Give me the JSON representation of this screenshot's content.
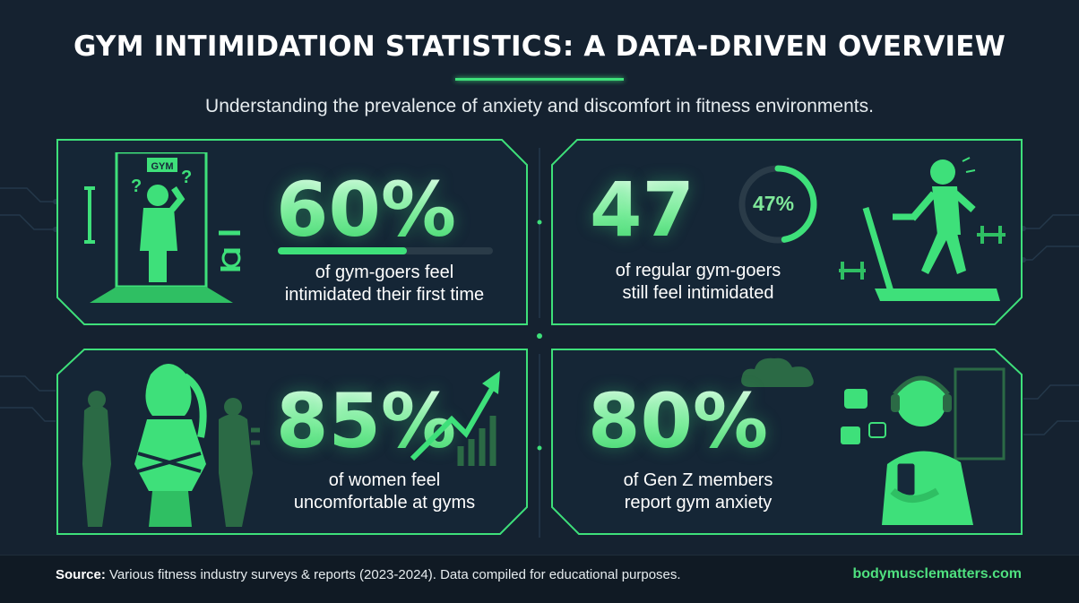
{
  "header": {
    "title": "GYM INTIMIDATION STATISTICS: A DATA-DRIVEN OVERVIEW",
    "subtitle": "Understanding the prevalence of anxiety and discomfort in fitness environments."
  },
  "colors": {
    "background": "#152230",
    "accent": "#3ee07a",
    "text": "#ffffff"
  },
  "stats": [
    {
      "value": "60%",
      "fraction": 0.6,
      "caption_line1": "of gym-goers feel",
      "caption_line2": "intimidated their first time",
      "illustration": "confused-person-at-gym-entrance-icon",
      "sign_text": "GYM"
    },
    {
      "value": "47",
      "ring_label": "47%",
      "fraction": 0.47,
      "caption_line1": "of regular gym-goers",
      "caption_line2": "still feel intimidated",
      "illustration": "person-on-treadmill-icon"
    },
    {
      "value": "85%",
      "fraction": 0.85,
      "caption_line1": "of women feel",
      "caption_line2": "uncomfortable at gyms",
      "illustration": "woman-crossed-arms-icon"
    },
    {
      "value": "80%",
      "fraction": 0.8,
      "caption_line1": "of Gen Z members",
      "caption_line2": "report gym anxiety",
      "illustration": "young-man-with-headphones-and-phone-icon"
    }
  ],
  "footer": {
    "source_label": "Source:",
    "source_text": " Various fitness industry surveys & reports (2023-2024). Data compiled for educational purposes.",
    "site": "bodymusclematters.com"
  }
}
